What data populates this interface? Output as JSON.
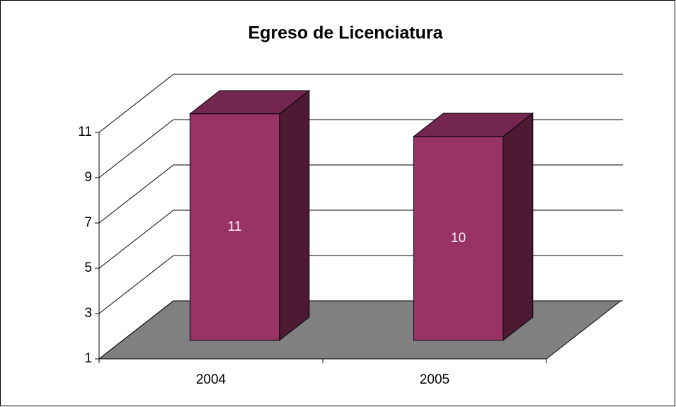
{
  "chart_data": {
    "type": "bar3d",
    "title": "Egreso de Licenciatura",
    "categories": [
      "2004",
      "2005"
    ],
    "values": [
      11,
      10
    ],
    "color": "#993366",
    "ylim": [
      1,
      11
    ],
    "yticks": [
      1,
      3,
      5,
      7,
      9,
      11
    ],
    "grid": true
  }
}
